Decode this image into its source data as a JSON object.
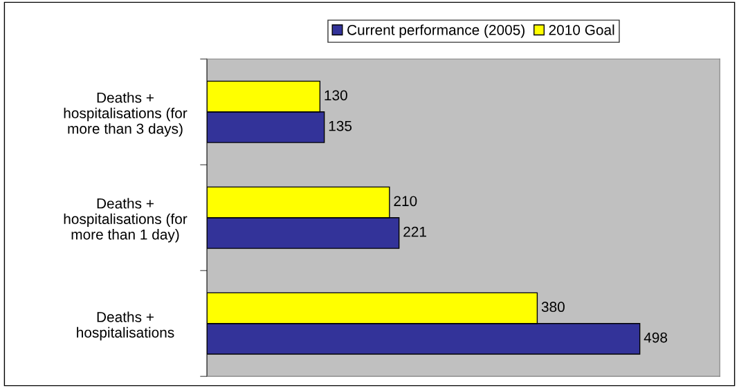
{
  "chart_data": {
    "type": "bar",
    "orientation": "horizontal",
    "categories": [
      "Deaths +\nhospitalisations (for\nmore than 3 days)",
      "Deaths +\nhospitalisations (for\nmore than 1 day)",
      "Deaths +\nhospitalisations"
    ],
    "series": [
      {
        "name": "Current performance (2005)",
        "color": "#333399",
        "values": [
          135,
          221,
          498
        ]
      },
      {
        "name": "2010 Goal",
        "color": "#ffff00",
        "values": [
          130,
          210,
          380
        ]
      }
    ],
    "xlim": [
      0,
      590
    ],
    "data_labels": true,
    "legend": "top",
    "grid": false,
    "tick_labels": "y"
  }
}
